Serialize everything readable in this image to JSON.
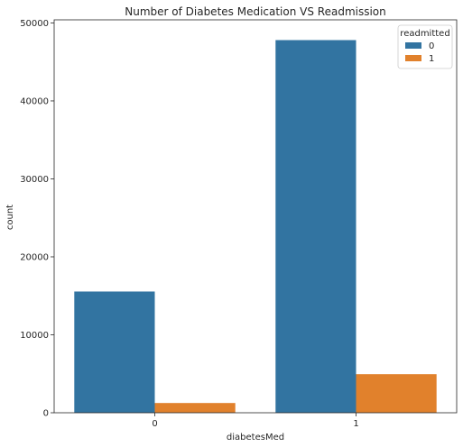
{
  "chart_data": {
    "type": "bar",
    "title": "Number of Diabetes Medication VS Readmission",
    "xlabel": "diabetesMed",
    "ylabel": "count",
    "categories": [
      "0",
      "1"
    ],
    "series": [
      {
        "name": "0",
        "values": [
          15550,
          47800
        ],
        "color": "#3274a1"
      },
      {
        "name": "1",
        "values": [
          1250,
          4950
        ],
        "color": "#e1812c"
      }
    ],
    "ylim": [
      0,
      50400
    ],
    "yticks": [
      0,
      10000,
      20000,
      30000,
      40000,
      50000
    ],
    "grid": false,
    "legend": {
      "title": "readmitted",
      "placement": "top-right"
    }
  }
}
